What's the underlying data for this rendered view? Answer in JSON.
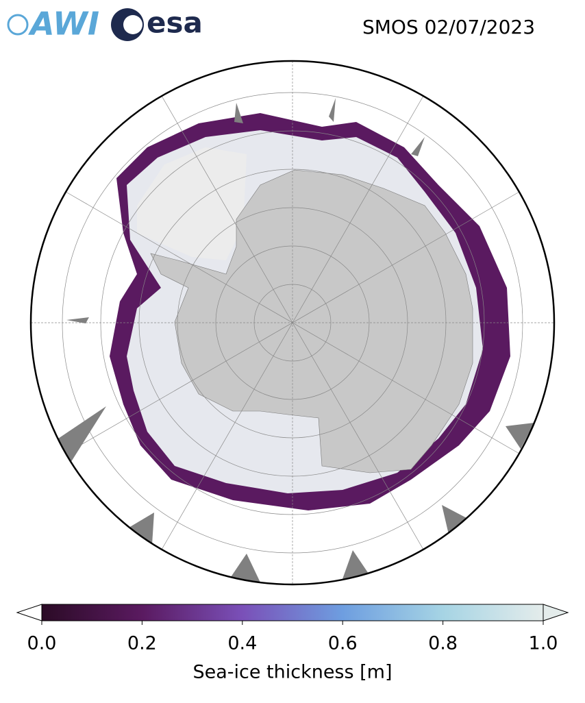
{
  "header": {
    "logos": [
      "AWI",
      "esa"
    ],
    "title": "SMOS 02/07/2023"
  },
  "colorbar": {
    "label": "Sea-ice thickness [m]",
    "lim": [
      0,
      1
    ],
    "ticks": [
      {
        "value": 0,
        "label": "0.0"
      },
      {
        "value": 0.2,
        "label": "0.2"
      },
      {
        "value": 0.4,
        "label": "0.4"
      },
      {
        "value": 0.6,
        "label": "0.6"
      },
      {
        "value": 0.8,
        "label": "0.8"
      },
      {
        "value": 1,
        "label": "1.0"
      }
    ],
    "colors": [
      "#2b0b26",
      "#5a1a60",
      "#7a50b8",
      "#6e9ee0",
      "#a6d4e4",
      "#e4eceb"
    ]
  }
}
